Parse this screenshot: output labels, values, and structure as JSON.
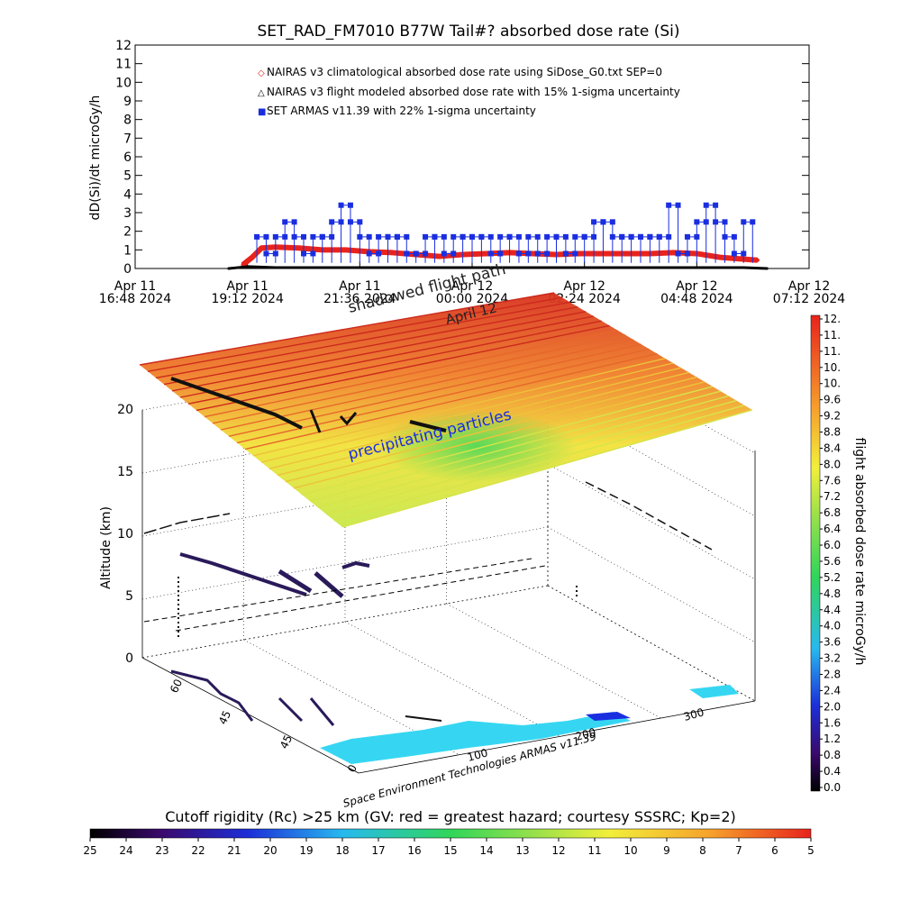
{
  "chart_data": [
    {
      "type": "line",
      "title": "SET_RAD_FM7010  B77W Tail#? absorbed dose rate (Si)",
      "ylabel": "dD(Si)/dt microGy/h",
      "ylim": [
        0,
        12
      ],
      "yticks": [
        "0",
        "1",
        "2",
        "3",
        "4",
        "5",
        "6",
        "7",
        "8",
        "9",
        "10",
        "11",
        "12"
      ],
      "xticks": [
        {
          "line1": "Apr 11",
          "line2": "16:48 2024"
        },
        {
          "line1": "Apr 11",
          "line2": "19:12 2024"
        },
        {
          "line1": "Apr 11",
          "line2": "21:36 2024"
        },
        {
          "line1": "Apr 12",
          "line2": "00:00 2024"
        },
        {
          "line1": "Apr 12",
          "line2": "02:24 2024"
        },
        {
          "line1": "Apr 12",
          "line2": "04:48 2024"
        },
        {
          "line1": "Apr 12",
          "line2": "07:12 2024"
        }
      ],
      "xlim_hours": [
        0,
        14.4
      ],
      "legend": [
        {
          "symbol": "◇",
          "color": "#e8231c",
          "label": "NAIRAS v3 climatological absorbed dose rate using SiDose_G0.txt SEP=0"
        },
        {
          "symbol": "△",
          "color": "#000000",
          "label": "NAIRAS v3 flight modeled absorbed dose rate with 15% 1-sigma uncertainty"
        },
        {
          "symbol": "■",
          "color": "#1a2ee0",
          "label": "SET ARMAS v11.39 with 22% 1-sigma uncertainty"
        }
      ],
      "series": [
        {
          "name": "NAIRAS v3 climatological absorbed dose rate using SiDose_G0.txt SEP=0",
          "color": "#e8231c",
          "x": [
            2.3,
            2.5,
            2.7,
            3.0,
            3.5,
            4.0,
            4.5,
            5.0,
            5.5,
            6.0,
            6.5,
            7.0,
            7.5,
            8.0,
            8.5,
            9.0,
            9.5,
            10.0,
            10.5,
            11.0,
            11.5,
            12.0,
            12.5,
            13.0,
            13.3
          ],
          "values": [
            0.2,
            0.6,
            1.1,
            1.15,
            1.1,
            1.0,
            1.0,
            0.9,
            0.85,
            0.75,
            0.65,
            0.75,
            0.8,
            0.85,
            0.8,
            0.75,
            0.8,
            0.8,
            0.8,
            0.8,
            0.85,
            0.8,
            0.6,
            0.5,
            0.45
          ]
        },
        {
          "name": "NAIRAS v3 flight modeled absorbed dose rate with 15% 1-sigma uncertainty",
          "color": "#000000",
          "x": [
            2.0,
            2.4,
            3.0,
            4.0,
            5.0,
            6.0,
            7.0,
            8.0,
            9.0,
            10.0,
            11.0,
            12.0,
            13.0,
            13.5
          ],
          "values": [
            0.0,
            0.1,
            0.05,
            0.05,
            0.05,
            0.05,
            0.05,
            0.05,
            0.05,
            0.05,
            0.05,
            0.05,
            0.05,
            0.0
          ]
        },
        {
          "name": "SET ARMAS v11.39 with 22% 1-sigma uncertainty",
          "color": "#1a2ee0",
          "x": [
            2.6,
            2.8,
            3.0,
            3.2,
            3.4,
            3.6,
            3.8,
            4.0,
            4.2,
            4.4,
            4.6,
            4.8,
            5.0,
            5.2,
            5.4,
            5.6,
            5.8,
            6.0,
            6.2,
            6.4,
            6.6,
            6.8,
            7.0,
            7.2,
            7.4,
            7.6,
            7.8,
            8.0,
            8.2,
            8.4,
            8.6,
            8.8,
            9.0,
            9.2,
            9.4,
            9.6,
            9.8,
            10.0,
            10.2,
            10.4,
            10.6,
            10.8,
            11.0,
            11.2,
            11.4,
            11.6,
            11.8,
            12.0,
            12.2,
            12.4,
            12.6,
            12.8,
            13.0
          ],
          "values": [
            1.7,
            0.8,
            1.7,
            2.5,
            1.7,
            0.8,
            1.7,
            1.7,
            2.5,
            3.4,
            2.5,
            1.7,
            0.8,
            1.7,
            1.7,
            1.7,
            0.8,
            0.8,
            1.7,
            1.7,
            0.8,
            1.7,
            1.7,
            1.7,
            1.7,
            0.8,
            1.7,
            1.7,
            0.8,
            1.7,
            0.8,
            1.7,
            1.7,
            0.8,
            1.7,
            1.7,
            2.5,
            2.5,
            1.7,
            1.7,
            1.7,
            1.7,
            1.7,
            1.7,
            3.4,
            0.8,
            1.7,
            2.5,
            3.4,
            2.5,
            1.7,
            0.8,
            2.5
          ]
        }
      ]
    },
    {
      "type": "surface-3d",
      "zlabel": "Altitude (km)",
      "zticks": [
        "0",
        "5",
        "10",
        "15",
        "20"
      ],
      "lat_ticks": [
        "0",
        "45",
        "60"
      ],
      "lon_ticks": [
        "0",
        "100",
        "200",
        "300"
      ],
      "annotations": [
        "shadowed flight path",
        "April 12",
        "precipitating particles"
      ],
      "credit": "Space Environment Technologies ARMAS v11.39",
      "colorbar": {
        "label": "flight absorbed dose rate microGy/h",
        "ticks": [
          "12.",
          "11.",
          "11.",
          "10.",
          "10.",
          "9.6",
          "9.2",
          "8.8",
          "8.4",
          "8.0",
          "7.6",
          "7.2",
          "6.8",
          "6.4",
          "6.0",
          "5.6",
          "5.2",
          "4.8",
          "4.4",
          "4.0",
          "3.6",
          "3.2",
          "2.8",
          "2.4",
          "2.0",
          "1.6",
          "1.2",
          "0.8",
          "0.4",
          "0.0"
        ]
      }
    },
    {
      "type": "colorbar",
      "title": "Cutoff rigidity (Rc) >25 km (GV: red = greatest hazard; courtesy SSSRC; Kp=2)",
      "ticks": [
        "25",
        "24",
        "23",
        "22",
        "21",
        "20",
        "19",
        "18",
        "17",
        "16",
        "15",
        "14",
        "13",
        "12",
        "11",
        "10",
        "9",
        "8",
        "7",
        "6",
        "5"
      ]
    }
  ]
}
